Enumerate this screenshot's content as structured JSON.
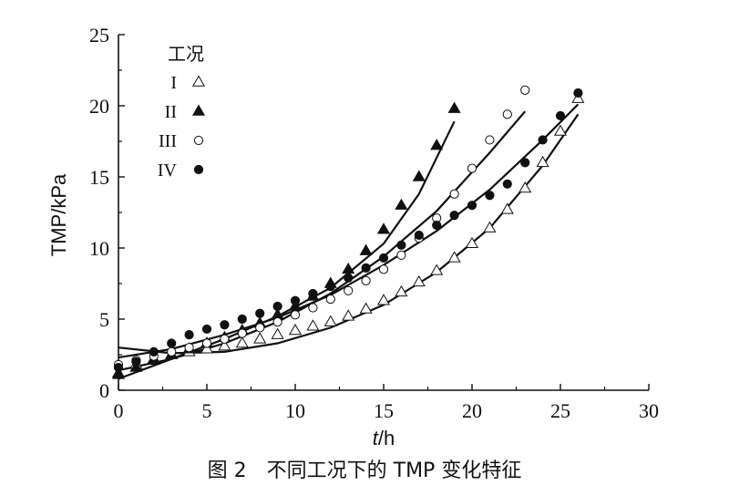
{
  "chart_data": {
    "type": "scatter",
    "xlabel": "t/h",
    "ylabel": "TMP/kPa",
    "xlim": [
      0,
      30
    ],
    "ylim": [
      0,
      25
    ],
    "xticks": [
      "0",
      "5",
      "10",
      "15",
      "20",
      "25",
      "30"
    ],
    "yticks": [
      "0",
      "5",
      "10",
      "15",
      "20",
      "25"
    ],
    "grid": false,
    "legend_title": "工况",
    "legend_position": "top-left",
    "series": [
      {
        "name": "I",
        "marker": "triangle-open",
        "x": [
          0,
          1,
          2,
          3,
          4,
          5,
          6,
          7,
          8,
          9,
          10,
          11,
          12,
          13,
          14,
          15,
          16,
          17,
          18,
          19,
          20,
          21,
          22,
          23,
          24,
          25,
          26
        ],
        "y": [
          1.2,
          1.8,
          2.2,
          2.5,
          2.7,
          2.9,
          3.1,
          3.3,
          3.6,
          3.9,
          4.2,
          4.5,
          4.8,
          5.2,
          5.7,
          6.3,
          6.9,
          7.6,
          8.4,
          9.3,
          10.3,
          11.4,
          12.7,
          14.2,
          16.0,
          18.2,
          20.5
        ],
        "fit": {
          "x": [
            0,
            3,
            6,
            9,
            12,
            15,
            18,
            21,
            24,
            26
          ],
          "y": [
            3.0,
            2.6,
            2.7,
            3.3,
            4.4,
            6.0,
            8.3,
            11.4,
            15.8,
            19.4
          ]
        }
      },
      {
        "name": "II",
        "marker": "triangle-filled",
        "x": [
          0,
          1,
          2,
          3,
          4,
          5,
          6,
          7,
          8,
          9,
          10,
          11,
          12,
          13,
          14,
          15,
          16,
          17,
          18,
          19
        ],
        "y": [
          1.1,
          1.6,
          2.1,
          2.5,
          2.9,
          3.3,
          3.7,
          4.2,
          4.7,
          5.3,
          5.9,
          6.6,
          7.5,
          8.5,
          9.8,
          11.3,
          13.0,
          15.0,
          17.2,
          19.8
        ],
        "fit": {
          "x": [
            0,
            3,
            6,
            9,
            12,
            15,
            17,
            19
          ],
          "y": [
            0.8,
            2.2,
            3.6,
            5.2,
            7.2,
            10.3,
            13.8,
            18.9
          ]
        }
      },
      {
        "name": "III",
        "marker": "circle-open",
        "x": [
          0,
          1,
          2,
          3,
          4,
          5,
          6,
          7,
          8,
          9,
          10,
          11,
          12,
          13,
          14,
          15,
          16,
          17,
          18,
          19,
          20,
          21,
          22,
          23
        ],
        "y": [
          1.8,
          2.1,
          2.4,
          2.7,
          3.0,
          3.3,
          3.6,
          4.0,
          4.4,
          4.8,
          5.3,
          5.8,
          6.4,
          7.0,
          7.7,
          8.5,
          9.5,
          10.7,
          12.1,
          13.8,
          15.6,
          17.6,
          19.4,
          21.1
        ],
        "fit": {
          "x": [
            0,
            3,
            6,
            9,
            12,
            15,
            18,
            21,
            23
          ],
          "y": [
            1.4,
            2.2,
            3.3,
            4.8,
            6.8,
            9.4,
            12.6,
            16.7,
            19.6
          ]
        }
      },
      {
        "name": "IV",
        "marker": "circle-filled",
        "x": [
          0,
          1,
          2,
          3,
          4,
          5,
          6,
          7,
          8,
          9,
          10,
          11,
          12,
          13,
          14,
          15,
          16,
          17,
          18,
          19,
          20,
          21,
          22,
          23,
          24,
          25,
          26
        ],
        "y": [
          1.6,
          2.0,
          2.7,
          3.3,
          3.9,
          4.3,
          4.6,
          5.0,
          5.4,
          5.9,
          6.3,
          6.8,
          7.3,
          7.9,
          8.6,
          9.3,
          10.2,
          10.9,
          11.6,
          12.3,
          13.0,
          13.7,
          14.5,
          16.0,
          17.6,
          19.3,
          20.9
        ],
        "fit": {
          "x": [
            0,
            3,
            6,
            9,
            12,
            15,
            18,
            21,
            24,
            26
          ],
          "y": [
            2.3,
            2.9,
            3.9,
            5.1,
            6.7,
            8.8,
            11.2,
            14.1,
            17.6,
            20.1
          ]
        }
      }
    ]
  },
  "caption": "图 2　不同工况下的 TMP 变化特征"
}
